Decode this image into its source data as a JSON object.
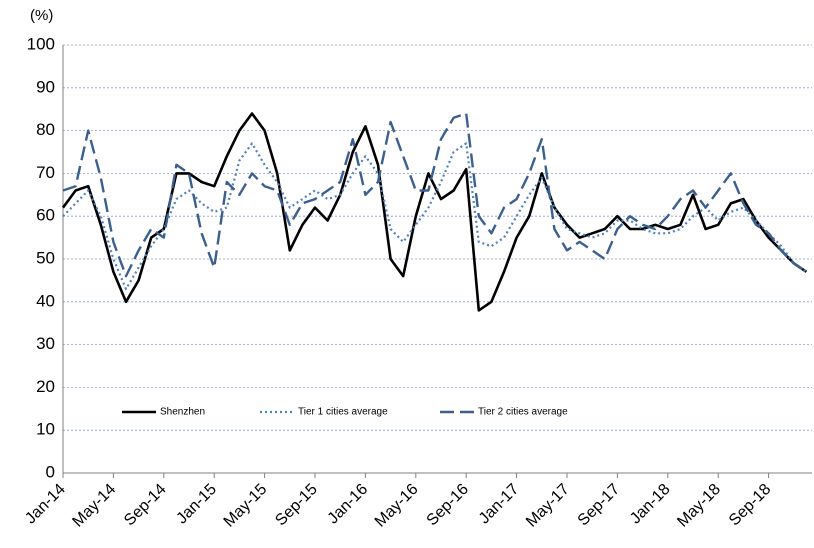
{
  "chart_data": {
    "type": "line",
    "y_label": "(%)",
    "categories": [
      "Jan-14",
      null,
      null,
      null,
      "May-14",
      null,
      null,
      null,
      "Sep-14",
      null,
      null,
      null,
      "Jan-15",
      null,
      null,
      null,
      "May-15",
      null,
      null,
      null,
      "Sep-15",
      null,
      null,
      null,
      "Jan-16",
      null,
      null,
      null,
      "May-16",
      null,
      null,
      null,
      "Sep-16",
      null,
      null,
      null,
      "Jan-17",
      null,
      null,
      null,
      "May-17",
      null,
      null,
      null,
      "Sep-17",
      null,
      null,
      null,
      "Jan-18",
      null,
      null,
      null,
      "May-18",
      null,
      null,
      null,
      "Sep-18",
      null,
      null,
      null
    ],
    "ylim": [
      0,
      100
    ],
    "yticks": [
      0,
      10,
      20,
      30,
      40,
      50,
      60,
      70,
      80,
      90,
      100
    ],
    "grid": true,
    "series": [
      {
        "name": "Shenzhen",
        "color": "#000000",
        "style": "solid",
        "values": [
          62,
          66,
          67,
          58,
          47,
          40,
          45,
          55,
          57,
          70,
          70,
          68,
          67,
          74,
          80,
          84,
          80,
          70,
          52,
          58,
          62,
          59,
          65,
          75,
          81,
          72,
          50,
          46,
          60,
          70,
          64,
          66,
          71,
          38,
          40,
          47,
          55,
          60,
          70,
          62,
          58,
          55,
          56,
          57,
          60,
          57,
          57,
          58,
          57,
          58,
          65,
          57,
          58,
          63,
          64,
          59,
          55,
          52,
          49,
          47
        ]
      },
      {
        "name": "Tier 1 cities average",
        "color": "#4f81bd",
        "style": "dotted",
        "values": [
          60,
          63,
          66,
          60,
          50,
          43,
          48,
          53,
          57,
          64,
          66,
          63,
          61,
          62,
          73,
          77,
          72,
          68,
          62,
          64,
          66,
          64,
          65,
          70,
          74,
          70,
          57,
          54,
          58,
          62,
          68,
          75,
          77,
          54,
          53,
          55,
          60,
          65,
          69,
          62,
          57,
          56,
          55,
          56,
          59,
          59,
          57,
          56,
          56,
          57,
          60,
          62,
          59,
          61,
          62,
          59,
          56,
          53,
          49,
          47
        ]
      },
      {
        "name": "Tier 2 cities average",
        "color": "#3b5f8f",
        "style": "dashed",
        "values": [
          66,
          67,
          80,
          69,
          54,
          46,
          52,
          57,
          55,
          72,
          70,
          56,
          48,
          68,
          65,
          70,
          67,
          66,
          58,
          63,
          64,
          66,
          68,
          78,
          65,
          68,
          82,
          74,
          66,
          66,
          78,
          83,
          84,
          60,
          56,
          62,
          64,
          70,
          78,
          57,
          52,
          54,
          52,
          50,
          57,
          60,
          58,
          57,
          60,
          64,
          66,
          62,
          66,
          70,
          63,
          58,
          56,
          52,
          49,
          47
        ]
      }
    ]
  }
}
